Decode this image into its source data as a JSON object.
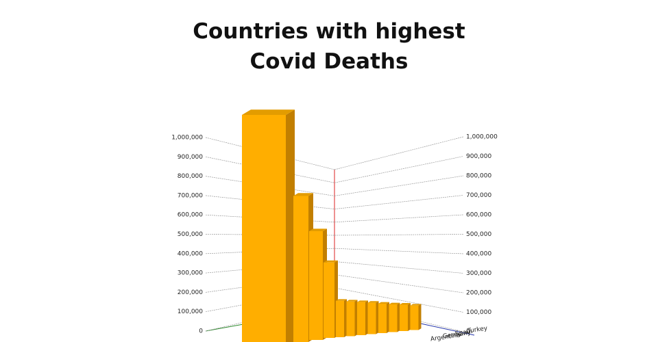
{
  "chart_data": {
    "type": "bar3d",
    "title": "Countries with highest Covid Deaths",
    "categories": [
      null,
      null,
      null,
      null,
      null,
      null,
      null,
      null,
      "Argentina",
      "Germany",
      "Spain",
      "Turkey"
    ],
    "values": [
      1100000,
      700000,
      530000,
      380000,
      190000,
      185000,
      180000,
      175000,
      168000,
      162000,
      158000,
      150000
    ],
    "color": "#ffae00",
    "ylim": [
      0,
      1000000
    ],
    "yticks": [
      0,
      {
        "value": 100000,
        "label": "100,000"
      },
      {
        "value": 200000,
        "label": "200,000"
      },
      {
        "value": 300000,
        "label": "300,000"
      },
      {
        "value": 400000,
        "label": "400,000"
      },
      {
        "value": 500000,
        "label": "500,000"
      },
      {
        "value": 600000,
        "label": "600,000"
      },
      {
        "value": 700000,
        "label": "700,000"
      },
      {
        "value": 800000,
        "label": "800,000"
      },
      {
        "value": 900000,
        "label": "900,000"
      },
      {
        "value": 1000000,
        "label": "1,000,000"
      }
    ],
    "grid": true
  }
}
